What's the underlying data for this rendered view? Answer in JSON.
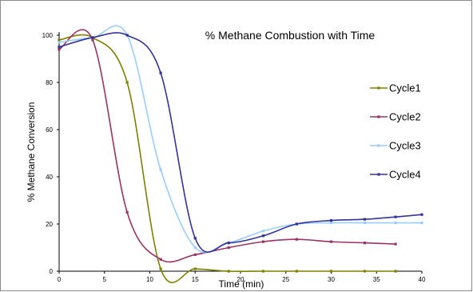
{
  "chart_data": {
    "type": "line",
    "title": "% Methane Combustion with Time",
    "xlabel": "Time (min)",
    "ylabel": "% Methane Conversion",
    "xlim": [
      0,
      40
    ],
    "ylim": [
      0,
      100
    ],
    "xticks": [
      0,
      5,
      10,
      15,
      20,
      25,
      30,
      35,
      40
    ],
    "yticks": [
      0,
      20,
      40,
      60,
      80,
      100
    ],
    "legend_position": "right",
    "grid": false,
    "series": [
      {
        "name": "Cycle1",
        "color": "#808000",
        "x": [
          0,
          3.7,
          7.5,
          11.2,
          15,
          18.7,
          22.5,
          26.2,
          30,
          33.7,
          37.1
        ],
        "y": [
          98,
          99,
          80,
          1,
          1,
          0,
          0,
          0,
          0,
          0,
          0
        ]
      },
      {
        "name": "Cycle2",
        "color": "#993366",
        "x": [
          0,
          3.7,
          7.5,
          11.2,
          15,
          18.7,
          22.5,
          26.2,
          30,
          33.7,
          37.1
        ],
        "y": [
          94,
          98,
          25,
          5,
          7,
          10,
          12.5,
          13.5,
          12.5,
          12,
          11.5
        ]
      },
      {
        "name": "Cycle3",
        "color": "#99ccff",
        "x": [
          0,
          3.7,
          7.5,
          11.2,
          15,
          18.7,
          22.5,
          26.2,
          30,
          33.7,
          37.1,
          40
        ],
        "y": [
          97,
          99,
          100,
          43,
          10,
          12,
          17,
          20,
          20.5,
          20.5,
          20.5,
          20.5
        ]
      },
      {
        "name": "Cycle4",
        "color": "#333399",
        "x": [
          0,
          3.7,
          7.5,
          11.2,
          15,
          18.7,
          22.5,
          26.2,
          30,
          33.7,
          37.1,
          40
        ],
        "y": [
          95,
          99,
          100,
          84,
          14,
          12,
          15,
          20,
          21.5,
          22,
          23,
          24
        ]
      }
    ]
  }
}
